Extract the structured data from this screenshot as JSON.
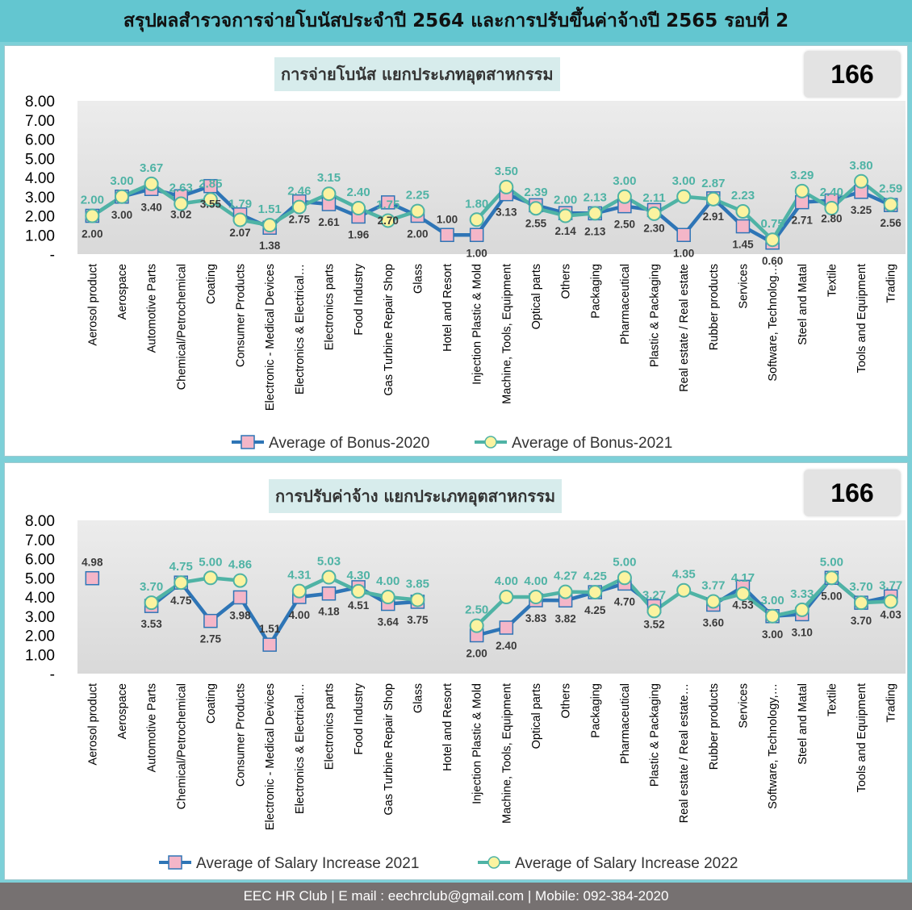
{
  "header": {
    "title": "สรุปผลสำรวจการจ่ายโบนัสประจำปี 2564 และการปรับขึ้นค่าจ้างปี 2565 รอบที่ 2"
  },
  "footer": {
    "text": "EEC HR Club | E mail : eechrclub@gmail.com  | Mobile: 092-384-2020"
  },
  "colors": {
    "series_a": "#2e75b6",
    "series_b": "#4fb3a5",
    "marker_a": "#f4b6c8",
    "marker_b": "#fbf3a0",
    "plot_bg": "#d9d9d9",
    "header_bg": "#63c6d0",
    "footer_bg": "#767171"
  },
  "panels": [
    {
      "title": "การจ่ายโบนัส แยกประเภทอุตสาหกรรม",
      "badge": "166"
    },
    {
      "title": "การปรับค่าจ้าง แยกประเภทอุตสาหกรรม",
      "badge": "166"
    }
  ],
  "chart_data": [
    {
      "type": "line",
      "categories": [
        "Aerosol product",
        "Aerospace",
        "Automotive Parts",
        "Chemical/Petrochemical",
        "Coating",
        "Consumer Products",
        "Electronic - Medical Devices",
        "Electronics & Electrical…",
        "Electronics parts",
        "Food Industry",
        "Gas Turbine Repair Shop",
        "Glass",
        "Hotel and Resort",
        "Injection Plastic & Mold",
        "Machine, Tools, Equipment",
        "Optical parts",
        "Others",
        "Packaging",
        "Pharmaceutical",
        "Plastic & Packaging",
        "Real estate / Real estate",
        "Rubber products",
        "Services",
        "Software, Technolog…",
        "Steel and Matal",
        "Textile",
        "Tools and Equipment",
        "Trading"
      ],
      "ylim": [
        0,
        8
      ],
      "yticks": [
        "-",
        "1.00",
        "2.00",
        "3.00",
        "4.00",
        "5.00",
        "6.00",
        "7.00",
        "8.00"
      ],
      "legend_position": "bottom",
      "series": [
        {
          "name": "Average of Bonus-2020",
          "values": [
            2.0,
            3.0,
            3.4,
            3.02,
            3.55,
            2.07,
            1.38,
            2.75,
            2.61,
            1.96,
            2.7,
            2.0,
            1.0,
            1.0,
            3.13,
            2.55,
            2.14,
            2.13,
            2.5,
            2.3,
            1.0,
            2.91,
            1.45,
            0.6,
            2.71,
            2.8,
            3.25,
            2.56
          ],
          "labels": [
            "2.00",
            "3.00",
            "3.40",
            "3.02",
            "3.55",
            "2.07",
            "1.38",
            "2.75",
            "2.61",
            "1.96",
            "2.70",
            "2.00",
            "1.00",
            "1.00",
            "3.13",
            "2.55",
            "2.14",
            "2.13",
            "2.50",
            "2.30",
            "1.00",
            "2.91",
            "1.45",
            "0.60",
            "2.71",
            "2.80",
            "3.25",
            "2.56"
          ]
        },
        {
          "name": "Average of Bonus-2021",
          "values": [
            2.0,
            3.0,
            3.67,
            2.63,
            2.85,
            1.79,
            1.51,
            2.46,
            3.15,
            2.4,
            1.75,
            2.25,
            null,
            1.8,
            3.5,
            2.39,
            2.0,
            2.13,
            3.0,
            2.11,
            3.0,
            2.87,
            2.23,
            0.75,
            3.29,
            2.4,
            3.8,
            2.59
          ],
          "labels": [
            "2.00",
            "3.00",
            "3.67",
            "2.63",
            "2.85",
            "1.79",
            "1.51",
            "2.46",
            "3.15",
            "2.40",
            "1.75",
            "2.25",
            "",
            "1.80",
            "3.50",
            "2.39",
            "2.00",
            "2.13",
            "3.00",
            "2.11",
            "3.00",
            "2.87",
            "2.23",
            "0.75",
            "3.29",
            "2.40",
            "3.80",
            "2.59"
          ]
        }
      ]
    },
    {
      "type": "line",
      "categories": [
        "Aerosol product",
        "Aerospace",
        "Automotive Parts",
        "Chemical/Petrochemical",
        "Coating",
        "Consumer Products",
        "Electronic - Medical Devices",
        "Electronics & Electrical…",
        "Electronics parts",
        "Food Industry",
        "Gas Turbine Repair Shop",
        "Glass",
        "Hotel and Resort",
        "Injection Plastic & Mold",
        "Machine, Tools, Equipment",
        "Optical parts",
        "Others",
        "Packaging",
        "Pharmaceutical",
        "Plastic & Packaging",
        "Real estate / Real estate…",
        "Rubber products",
        "Services",
        "Software, Technology,…",
        "Steel and Matal",
        "Textile",
        "Tools and Equipment",
        "Trading"
      ],
      "ylim": [
        0,
        8
      ],
      "yticks": [
        "-",
        "1.00",
        "2.00",
        "3.00",
        "4.00",
        "5.00",
        "6.00",
        "7.00",
        "8.00"
      ],
      "legend_position": "bottom",
      "series": [
        {
          "name": "Average of Salary Increase 2021",
          "values": [
            4.98,
            null,
            3.53,
            4.75,
            2.75,
            3.98,
            1.51,
            4.0,
            4.18,
            4.51,
            3.64,
            3.75,
            null,
            2.0,
            2.4,
            3.83,
            3.82,
            4.25,
            4.7,
            3.52,
            null,
            3.6,
            4.53,
            3.0,
            3.1,
            5.0,
            3.7,
            4.03
          ],
          "labels": [
            "4.98",
            "",
            "3.53",
            "4.75",
            "2.75",
            "3.98",
            "1.51",
            "4.00",
            "4.18",
            "4.51",
            "3.64",
            "3.75",
            "",
            "2.00",
            "2.40",
            "3.83",
            "3.82",
            "4.25",
            "4.70",
            "3.52",
            "",
            "3.60",
            "4.53",
            "3.00",
            "3.10",
            "5.00",
            "3.70",
            "4.03"
          ]
        },
        {
          "name": "Average of Salary Increase 2022",
          "values": [
            null,
            null,
            3.7,
            4.75,
            5.0,
            4.86,
            null,
            4.31,
            5.03,
            4.3,
            4.0,
            3.85,
            null,
            2.5,
            4.0,
            4.0,
            4.27,
            4.25,
            5.0,
            3.27,
            4.35,
            3.77,
            4.17,
            3.0,
            3.33,
            5.0,
            3.7,
            3.77
          ],
          "labels": [
            "",
            "",
            "3.70",
            "4.75",
            "5.00",
            "4.86",
            "",
            "4.31",
            "5.03",
            "4.30",
            "4.00",
            "3.85",
            "",
            "2.50",
            "4.00",
            "4.00",
            "4.27",
            "4.25",
            "5.00",
            "3.27",
            "4.35",
            "3.77",
            "4.17",
            "3.00",
            "3.33",
            "5.00",
            "3.70",
            "3.77"
          ]
        }
      ]
    }
  ]
}
